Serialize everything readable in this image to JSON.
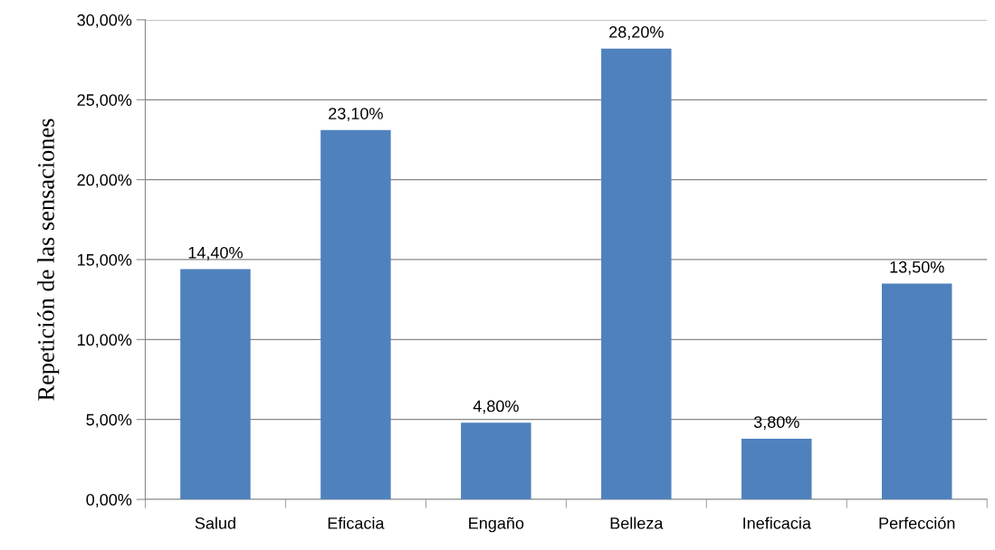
{
  "chart_data": {
    "type": "bar",
    "ylabel": "Repetición de las sensaciones",
    "categories": [
      "Salud",
      "Eficacia",
      "Engaño",
      "Belleza",
      "Ineficacia",
      "Perfección"
    ],
    "values": [
      14.4,
      23.1,
      4.8,
      28.2,
      3.8,
      13.5
    ],
    "value_labels": [
      "14,40%",
      "23,10%",
      "4,80%",
      "28,20%",
      "3,80%",
      "13,50%"
    ],
    "color": "#4f81bd",
    "ylim": [
      0,
      30
    ],
    "yticks": [
      {
        "value": 0,
        "label": "0,00%"
      },
      {
        "value": 5,
        "label": "5,00%"
      },
      {
        "value": 10,
        "label": "10,00%"
      },
      {
        "value": 15,
        "label": "15,00%"
      },
      {
        "value": 20,
        "label": "20,00%"
      },
      {
        "value": 25,
        "label": "25,00%"
      },
      {
        "value": 30,
        "label": "30,00%"
      }
    ],
    "grid": "y"
  }
}
